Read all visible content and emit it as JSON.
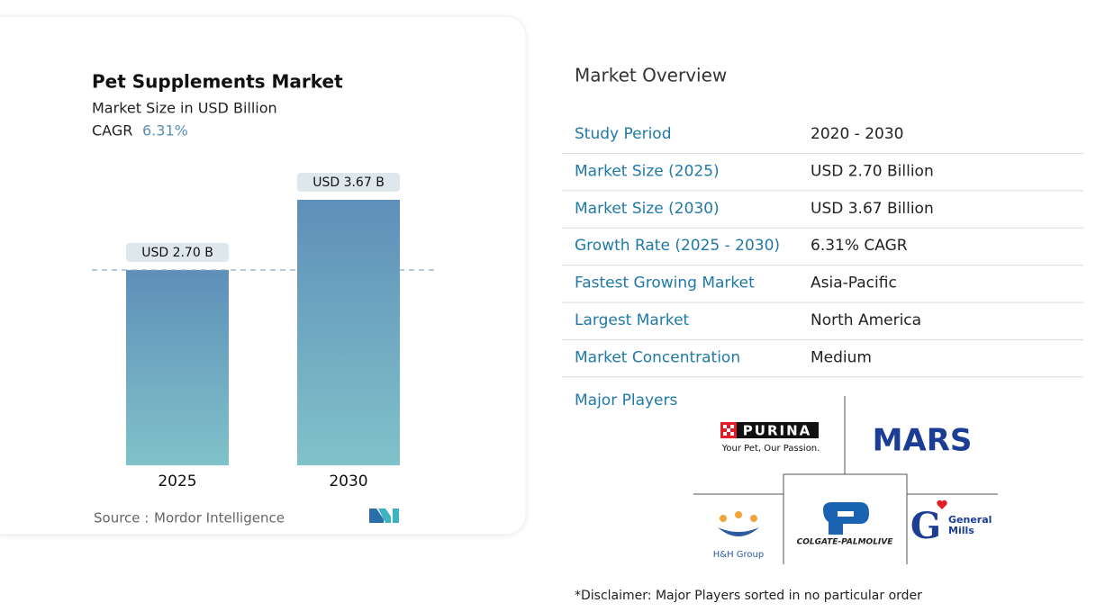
{
  "chart_data": {
    "type": "bar",
    "title": "Pet Supplements Market",
    "subtitle": "Market Size in USD Billion",
    "cagr_label": "CAGR",
    "cagr_value": "6.31%",
    "categories": [
      "2025",
      "2030"
    ],
    "values": [
      2.7,
      3.67
    ],
    "value_labels": [
      "USD 2.70 B",
      "USD 3.67 B"
    ],
    "source_label": "Source :",
    "source": "Mordor Intelligence"
  },
  "overview": {
    "title": "Market Overview",
    "rows": [
      [
        "Study Period",
        "2020 - 2030"
      ],
      [
        "Market Size (2025)",
        "USD 2.70 Billion"
      ],
      [
        "Market Size (2030)",
        "USD 3.67 Billion"
      ],
      [
        "Growth Rate (2025 - 2030)",
        "6.31% CAGR"
      ],
      [
        "Fastest Growing Market",
        "Asia-Pacific"
      ],
      [
        "Largest Market",
        "North America"
      ],
      [
        "Market Concentration",
        "Medium"
      ]
    ],
    "players_title": "Major Players",
    "players": {
      "purina": "PURINA",
      "purina_tagline": "Your Pet, Our Passion.",
      "mars": "MARS",
      "hh": "H&H Group",
      "colgate": "COLGATE-PALMOLIVE",
      "general_mills_1": "General",
      "general_mills_2": "Mills"
    },
    "disclaimer": "*Disclaimer: Major Players sorted in no particular order"
  }
}
